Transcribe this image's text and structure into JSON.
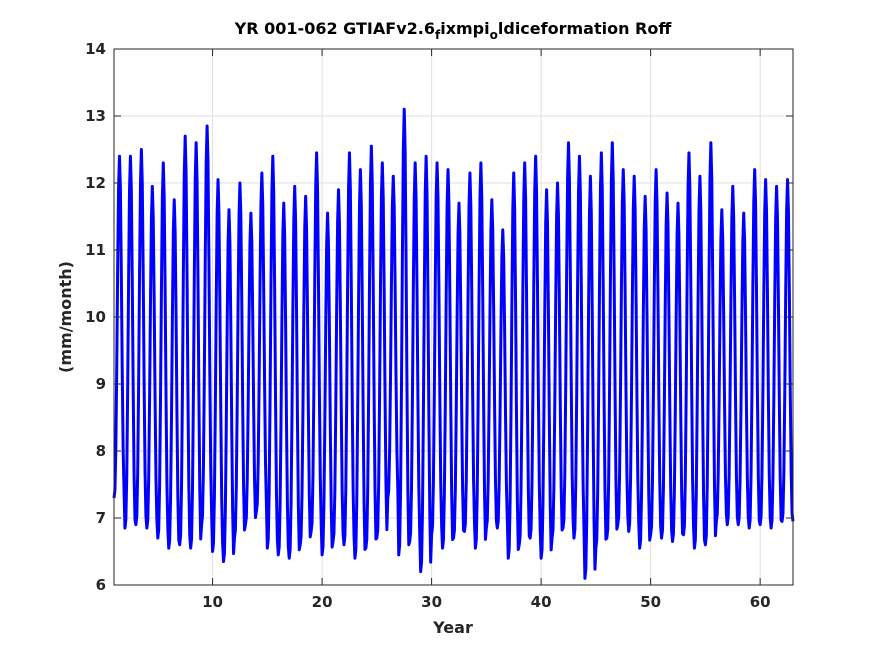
{
  "chart_data": {
    "type": "line",
    "title": {
      "prefix": "YR 001-062 GTIAFv2.6",
      "sub1": "f",
      "mid": "ixmpi",
      "sub2": "o",
      "suffix": "ldiceformation Roff"
    },
    "xlabel": "Year",
    "ylabel": "(mm/month)",
    "xlim": [
      1,
      63
    ],
    "ylim": [
      6,
      14
    ],
    "xticks": [
      10,
      20,
      30,
      40,
      50,
      60
    ],
    "yticks": [
      6,
      7,
      8,
      9,
      10,
      11,
      12,
      13,
      14
    ],
    "grid": true,
    "series": [
      {
        "color": "#0000ff",
        "values_per_year": 12,
        "annual_peaks": [
          12.4,
          12.4,
          12.5,
          11.95,
          12.3,
          11.75,
          12.7,
          12.6,
          12.85,
          12.05,
          11.6,
          12.0,
          11.55,
          12.15,
          12.4,
          11.7,
          11.95,
          11.8,
          12.45,
          11.55,
          11.9,
          12.45,
          12.2,
          12.55,
          12.3,
          12.1,
          13.1,
          12.3,
          12.4,
          12.3,
          12.2,
          11.7,
          12.15,
          12.3,
          11.75,
          11.3,
          12.15,
          12.3,
          12.4,
          11.9,
          12.0,
          12.6,
          12.4,
          12.1,
          12.45,
          12.6,
          12.2,
          12.1,
          11.8,
          12.2,
          11.85,
          11.7,
          12.45,
          12.1,
          12.6,
          11.6,
          11.95,
          11.55,
          12.2,
          12.05,
          11.95,
          12.05
        ],
        "annual_troughs": [
          7.3,
          6.85,
          6.9,
          6.85,
          6.7,
          6.55,
          6.6,
          6.55,
          6.9,
          6.5,
          6.35,
          6.7,
          6.9,
          7.1,
          6.55,
          6.45,
          6.4,
          6.6,
          6.8,
          6.45,
          6.65,
          6.6,
          6.4,
          6.55,
          6.7,
          7.3,
          6.45,
          6.65,
          6.2,
          6.75,
          6.55,
          6.7,
          6.8,
          6.55,
          6.85,
          6.85,
          6.4,
          6.6,
          6.7,
          6.4,
          6.7,
          6.85,
          6.7,
          6.1,
          6.55,
          6.7,
          6.9,
          6.8,
          6.55,
          6.75,
          6.7,
          6.65,
          6.75,
          6.55,
          6.6,
          6.95,
          6.9,
          6.9,
          6.85,
          6.9,
          6.85,
          6.95
        ]
      }
    ]
  }
}
